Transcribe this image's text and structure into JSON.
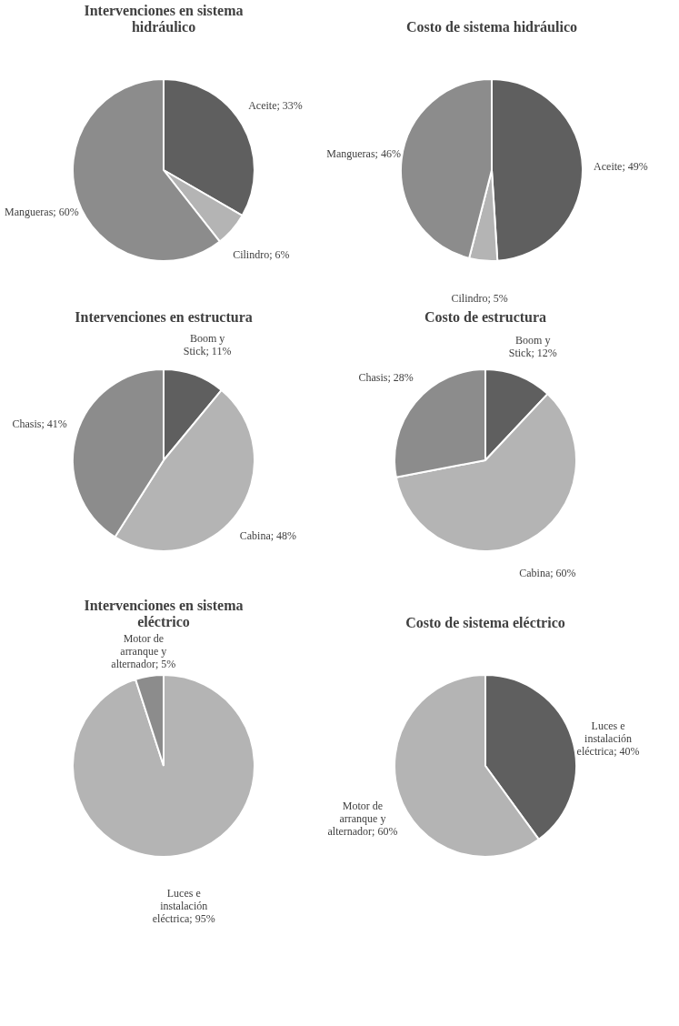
{
  "chart_data": [
    {
      "type": "pie",
      "title": "Intervenciones en sistema hidráulico",
      "categories": [
        "Aceite",
        "Cilindro",
        "Mangueras"
      ],
      "values": [
        33,
        6,
        60
      ],
      "value_labels": [
        "33%",
        "6%",
        "60%"
      ],
      "colors": [
        "#5f5f5f",
        "#b4b4b4",
        "#8c8c8c"
      ],
      "legend": false
    },
    {
      "type": "pie",
      "title": "Costo de sistema hidráulico",
      "categories": [
        "Aceite",
        "Cilindro",
        "Mangueras"
      ],
      "values": [
        49,
        5,
        46
      ],
      "value_labels": [
        "49%",
        "5%",
        "46%"
      ],
      "colors": [
        "#5f5f5f",
        "#b4b4b4",
        "#8c8c8c"
      ]
    },
    {
      "type": "pie",
      "title": "Intervenciones en estructura",
      "categories": [
        "Boom y Stick",
        "Cabina",
        "Chasis"
      ],
      "values": [
        11,
        48,
        41
      ],
      "value_labels": [
        "11%",
        "48%",
        "41%"
      ],
      "colors": [
        "#5f5f5f",
        "#b4b4b4",
        "#8c8c8c"
      ]
    },
    {
      "type": "pie",
      "title": "Costo de estructura",
      "categories": [
        "Boom y Stick",
        "Cabina",
        "Chasis"
      ],
      "values": [
        12,
        60,
        28
      ],
      "value_labels": [
        "12%",
        "60%",
        "28%"
      ],
      "colors": [
        "#5f5f5f",
        "#b4b4b4",
        "#8c8c8c"
      ]
    },
    {
      "type": "pie",
      "title": "Intervenciones en sistema eléctrico",
      "categories": [
        "Luces e instalación eléctrica",
        "Motor de arranque y alternador"
      ],
      "values": [
        95,
        5
      ],
      "value_labels": [
        "95%",
        "5%"
      ],
      "colors": [
        "#b4b4b4",
        "#8c8c8c"
      ]
    },
    {
      "type": "pie",
      "title": "Costo de sistema eléctrico",
      "categories": [
        "Luces e instalación eléctrica",
        "Motor de arranque y alternador"
      ],
      "values": [
        40,
        60
      ],
      "value_labels": [
        "40%",
        "60%"
      ],
      "colors": [
        "#5f5f5f",
        "#b4b4b4"
      ]
    }
  ]
}
